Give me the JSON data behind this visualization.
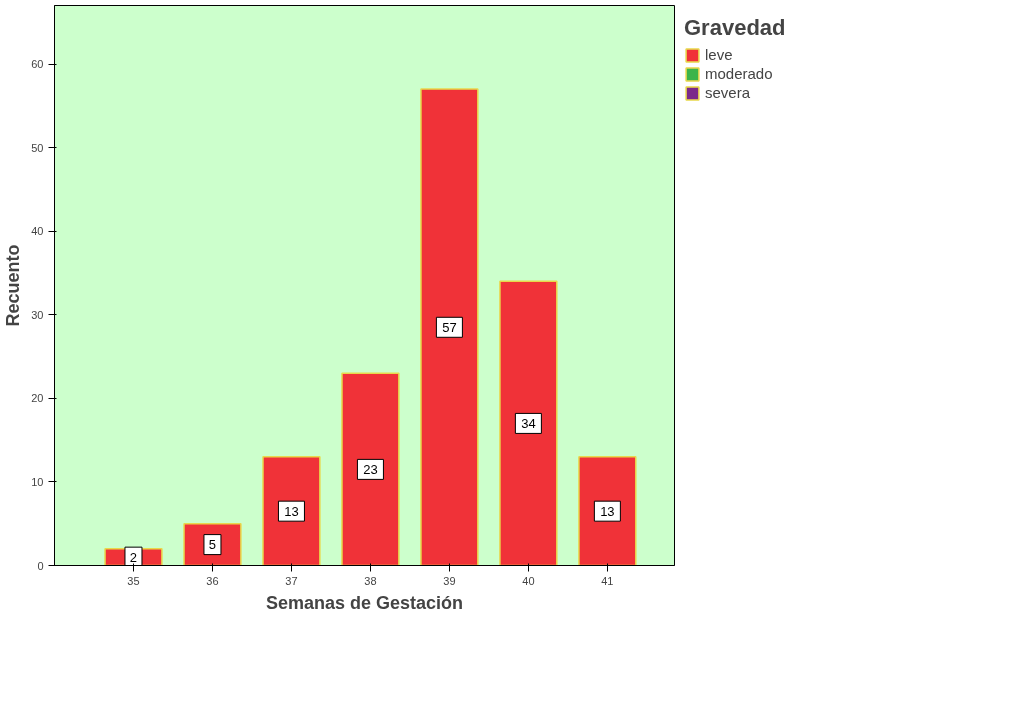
{
  "chart_data": {
    "type": "bar",
    "xlabel": "Semanas de Gestación",
    "ylabel": "Recuento",
    "legend_title": "Gravedad",
    "legend": "top right",
    "categories": [
      "35",
      "36",
      "37",
      "38",
      "39",
      "40",
      "41"
    ],
    "series": [
      {
        "name": "leve",
        "color": "#f03238",
        "values": [
          2,
          5,
          13,
          23,
          57,
          34,
          13
        ]
      },
      {
        "name": "moderado",
        "color": "#3cb44a",
        "values": [
          null,
          null,
          null,
          null,
          null,
          null,
          null
        ]
      },
      {
        "name": "severa",
        "color": "#7b2a8a",
        "values": [
          null,
          null,
          null,
          null,
          null,
          null,
          null
        ]
      }
    ],
    "ylim": [
      0,
      67
    ],
    "yticks": [
      0,
      10,
      20,
      30,
      40,
      50,
      60
    ],
    "grid": false,
    "data_labels": true
  }
}
